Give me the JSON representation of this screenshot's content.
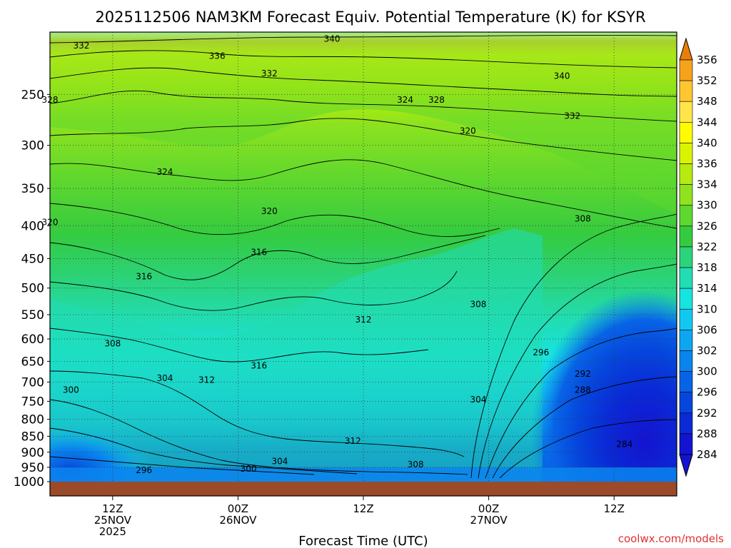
{
  "chart_data": {
    "type": "heatmap",
    "title": "2025112506 NAM3KM Forecast Equiv. Potential Temperature (K) for KSYR",
    "xlabel": "Forecast Time (UTC)",
    "ylabel": "",
    "credit": "coolwx.com/models",
    "y_scale": "log-pressure",
    "ylim": [
      1000,
      200
    ],
    "y_ticks": [
      250,
      300,
      350,
      400,
      450,
      500,
      550,
      600,
      650,
      700,
      750,
      800,
      850,
      900,
      950,
      1000
    ],
    "xlim": [
      "2025-11-25 06Z",
      "2025-11-27 18Z"
    ],
    "x_ticks": [
      {
        "time": "2025-11-25 12Z",
        "lines": [
          "12Z",
          "25NOV",
          "2025"
        ]
      },
      {
        "time": "2025-11-26 00Z",
        "lines": [
          "00Z",
          "26NOV"
        ]
      },
      {
        "time": "2025-11-26 12Z",
        "lines": [
          "12Z"
        ]
      },
      {
        "time": "2025-11-27 00Z",
        "lines": [
          "00Z",
          "27NOV"
        ]
      },
      {
        "time": "2025-11-27 12Z",
        "lines": [
          "12Z"
        ]
      }
    ],
    "grid": true,
    "colorbar": {
      "placement": "right",
      "levels": [
        356,
        352,
        348,
        344,
        340,
        336,
        334,
        330,
        326,
        322,
        318,
        314,
        310,
        306,
        302,
        300,
        296,
        292,
        288,
        284
      ],
      "colors": [
        "#e87e08",
        "#f5a21d",
        "#ffc630",
        "#ffe54a",
        "#fffc00",
        "#d9f400",
        "#b6ea10",
        "#8fe31e",
        "#5ed72e",
        "#35cb40",
        "#2bd37a",
        "#22dcb2",
        "#17e3e0",
        "#13c8f0",
        "#0ea6f0",
        "#0a85ee",
        "#0864e6",
        "#0646dc",
        "#0a2ad6",
        "#1414d0"
      ]
    },
    "contour_labels": [
      {
        "value": 340,
        "time": "2025-11-26 09Z",
        "p": 205
      },
      {
        "value": 332,
        "time": "2025-11-25 09Z",
        "p": 210
      },
      {
        "value": 336,
        "time": "2025-11-25 22Z",
        "p": 218
      },
      {
        "value": 332,
        "time": "2025-11-26 03Z",
        "p": 232
      },
      {
        "value": 340,
        "time": "2025-11-27 07Z",
        "p": 234
      },
      {
        "value": 328,
        "time": "2025-11-25 06Z",
        "p": 255
      },
      {
        "value": 324,
        "time": "2025-11-26 16Z",
        "p": 255
      },
      {
        "value": 328,
        "time": "2025-11-26 19Z",
        "p": 255
      },
      {
        "value": 332,
        "time": "2025-11-27 08Z",
        "p": 270
      },
      {
        "value": 320,
        "time": "2025-11-26 22Z",
        "p": 285
      },
      {
        "value": 324,
        "time": "2025-11-25 17Z",
        "p": 330
      },
      {
        "value": 320,
        "time": "2025-11-26 03Z",
        "p": 380
      },
      {
        "value": 320,
        "time": "2025-11-25 06Z",
        "p": 395
      },
      {
        "value": 308,
        "time": "2025-11-27 09Z",
        "p": 390
      },
      {
        "value": 316,
        "time": "2025-11-26 02Z",
        "p": 440
      },
      {
        "value": 316,
        "time": "2025-11-25 15Z",
        "p": 480
      },
      {
        "value": 308,
        "time": "2025-11-26 23Z",
        "p": 530
      },
      {
        "value": 312,
        "time": "2025-11-26 12Z",
        "p": 560
      },
      {
        "value": 308,
        "time": "2025-11-25 12Z",
        "p": 610
      },
      {
        "value": 296,
        "time": "2025-11-27 05Z",
        "p": 630
      },
      {
        "value": 316,
        "time": "2025-11-26 02Z",
        "p": 660
      },
      {
        "value": 304,
        "time": "2025-11-25 17Z",
        "p": 690
      },
      {
        "value": 312,
        "time": "2025-11-25 21Z",
        "p": 695
      },
      {
        "value": 292,
        "time": "2025-11-27 09Z",
        "p": 680
      },
      {
        "value": 288,
        "time": "2025-11-27 09Z",
        "p": 720
      },
      {
        "value": 300,
        "time": "2025-11-25 08Z",
        "p": 720
      },
      {
        "value": 304,
        "time": "2025-11-26 23Z",
        "p": 745
      },
      {
        "value": 312,
        "time": "2025-11-26 11Z",
        "p": 865
      },
      {
        "value": 284,
        "time": "2025-11-27 13Z",
        "p": 875
      },
      {
        "value": 304,
        "time": "2025-11-26 04Z",
        "p": 930
      },
      {
        "value": 300,
        "time": "2025-11-26 01Z",
        "p": 955
      },
      {
        "value": 308,
        "time": "2025-11-26 17Z",
        "p": 940
      },
      {
        "value": 296,
        "time": "2025-11-25 15Z",
        "p": 960
      }
    ]
  }
}
